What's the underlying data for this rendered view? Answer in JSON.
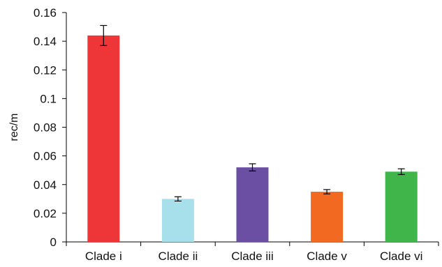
{
  "chart_data": {
    "type": "bar",
    "title": "",
    "xlabel": "",
    "ylabel": "rec/m",
    "categories": [
      "Clade i",
      "Clade ii",
      "Clade iii",
      "Clade v",
      "Clade vi"
    ],
    "values": [
      0.144,
      0.03,
      0.052,
      0.035,
      0.049
    ],
    "error": [
      0.007,
      0.0015,
      0.0025,
      0.0015,
      0.002
    ],
    "colors": [
      "#ee3639",
      "#a7dfeb",
      "#6a4fa3",
      "#f26a21",
      "#3fb54a"
    ],
    "ylim": [
      0,
      0.16
    ],
    "yticks": [
      "0",
      "0.02",
      "0.04",
      "0.06",
      "0.08",
      "0.1",
      "0.12",
      "0.14",
      "0.16"
    ],
    "grid": false,
    "legend": "none"
  }
}
